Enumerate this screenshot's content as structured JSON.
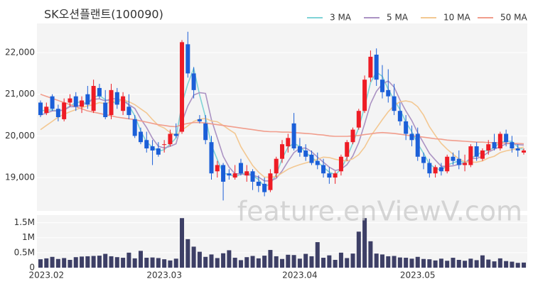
{
  "watermark": "feature.enViewV.com",
  "chart_data": [
    {
      "type": "candlestick",
      "title": "SK오션플랜트(100090)",
      "legend": "top-right",
      "grid": true,
      "up_color": "#ee1c25",
      "down_color": "#1b5fd8",
      "ylim": [
        18200,
        22700
      ],
      "yticks": [
        {
          "value": 19000,
          "label": "19,000"
        },
        {
          "value": 20000,
          "label": "20,000"
        },
        {
          "value": 21000,
          "label": "21,000"
        },
        {
          "value": 22000,
          "label": "22,000"
        }
      ],
      "open": [
        20800,
        20550,
        20950,
        20650,
        20400,
        20800,
        20950,
        20700,
        21000,
        20600,
        21150,
        20800,
        20500,
        21050,
        20600,
        20700,
        20400,
        20100,
        19900,
        19750,
        19700,
        19800,
        19800,
        20050,
        20100,
        22200,
        21500,
        20400,
        20300,
        19850,
        19150,
        19300,
        19100,
        19000,
        19350,
        19050,
        19150,
        18900,
        18850,
        18700,
        19100,
        19450,
        19750,
        20300,
        19750,
        19650,
        19550,
        19400,
        19300,
        19100,
        19000,
        19150,
        19500,
        19850,
        20200,
        20600,
        21400,
        21950,
        21350,
        21100,
        20950,
        20600,
        20350,
        20050,
        20050,
        19500,
        19350,
        19100,
        19250,
        19150,
        19500,
        19450,
        19300,
        19300,
        19750,
        19450,
        19650,
        19850,
        19700,
        20050,
        19850,
        19700,
        19600
      ],
      "high": [
        20850,
        20800,
        21000,
        20750,
        20900,
        21000,
        21050,
        20950,
        21200,
        21350,
        21250,
        21100,
        21250,
        21150,
        21050,
        21000,
        20500,
        20200,
        20100,
        19900,
        19850,
        19900,
        20150,
        20300,
        22300,
        22500,
        21650,
        20500,
        20500,
        20000,
        19400,
        19350,
        19200,
        19300,
        19450,
        19300,
        19200,
        19050,
        19000,
        19200,
        19500,
        19900,
        20050,
        20550,
        19950,
        19800,
        19650,
        19600,
        19450,
        19250,
        19150,
        19550,
        19900,
        20200,
        20650,
        21450,
        22050,
        22100,
        21700,
        21600,
        21250,
        20800,
        20500,
        20250,
        20200,
        19600,
        19450,
        19300,
        19350,
        19550,
        19600,
        19650,
        19550,
        19800,
        19850,
        19700,
        19900,
        20050,
        20100,
        20150,
        20000,
        19800,
        19700
      ],
      "low": [
        20450,
        20500,
        20600,
        20350,
        20350,
        20700,
        20600,
        20550,
        20650,
        20550,
        20900,
        20400,
        20400,
        20650,
        20500,
        20400,
        19950,
        19800,
        19600,
        19300,
        19500,
        19600,
        19750,
        19950,
        20050,
        21400,
        20900,
        20300,
        19800,
        18950,
        19000,
        18450,
        18950,
        18950,
        19050,
        18900,
        18700,
        18650,
        18550,
        18650,
        19000,
        19350,
        19600,
        19650,
        19500,
        19400,
        19300,
        19200,
        19000,
        18850,
        18850,
        19050,
        19400,
        19800,
        20150,
        20550,
        21300,
        21200,
        20900,
        20800,
        20500,
        20250,
        19900,
        19750,
        19400,
        19200,
        19000,
        19000,
        19050,
        19100,
        19300,
        19200,
        19150,
        19250,
        19400,
        19400,
        19550,
        19650,
        19650,
        19750,
        19600,
        19500,
        19550
      ],
      "close": [
        20500,
        20700,
        20650,
        20450,
        20800,
        20900,
        20700,
        20850,
        20750,
        21200,
        20950,
        20450,
        21100,
        20750,
        20950,
        20500,
        20000,
        19850,
        19700,
        19650,
        19550,
        19800,
        20050,
        20000,
        22250,
        21500,
        21100,
        20350,
        19900,
        19100,
        19300,
        18900,
        19050,
        19100,
        19100,
        19150,
        18900,
        18800,
        18650,
        19100,
        19450,
        19800,
        19950,
        19700,
        19600,
        19500,
        19350,
        19300,
        19100,
        19000,
        19100,
        19500,
        19850,
        20150,
        20600,
        21350,
        21900,
        21350,
        21050,
        20950,
        20600,
        20350,
        20050,
        19900,
        19500,
        19350,
        19100,
        19250,
        19150,
        19500,
        19400,
        19300,
        19350,
        19750,
        19500,
        19650,
        19800,
        19700,
        20050,
        19850,
        19700,
        19650,
        19650
      ],
      "series": [
        {
          "name": "3 MA",
          "color": "#7fd3d6",
          "values": [
            20600,
            20620,
            20620,
            20600,
            20630,
            20720,
            20800,
            20820,
            20770,
            20930,
            20970,
            20870,
            20830,
            20770,
            20930,
            20730,
            20480,
            20120,
            19850,
            19730,
            19630,
            19670,
            19800,
            19950,
            20770,
            21250,
            21620,
            20980,
            20450,
            19780,
            19430,
            19100,
            19080,
            19020,
            19080,
            19120,
            19050,
            18950,
            18780,
            18850,
            19070,
            19450,
            19730,
            19820,
            19750,
            19600,
            19480,
            19380,
            19250,
            19130,
            19070,
            19200,
            19480,
            19830,
            20200,
            20700,
            21280,
            21530,
            21430,
            21120,
            20870,
            20630,
            20330,
            20100,
            19820,
            19580,
            19320,
            19230,
            19170,
            19300,
            19350,
            19400,
            19350,
            19470,
            19530,
            19630,
            19650,
            19720,
            19850,
            19870,
            19870,
            19730,
            19670
          ]
        },
        {
          "name": "5 MA",
          "color": "#ab93c3",
          "values": [
            20500,
            20550,
            20600,
            20600,
            20620,
            20700,
            20700,
            20740,
            20800,
            20880,
            20890,
            20840,
            20890,
            20890,
            20840,
            20750,
            20660,
            20410,
            20200,
            19940,
            19750,
            19710,
            19750,
            19810,
            20330,
            20720,
            20980,
            21040,
            21020,
            20390,
            19950,
            19510,
            19250,
            19090,
            19090,
            19060,
            19060,
            19010,
            18920,
            18920,
            18980,
            19160,
            19390,
            19600,
            19700,
            19710,
            19620,
            19490,
            19370,
            19250,
            19170,
            19200,
            19310,
            19520,
            19840,
            20290,
            20770,
            21070,
            21250,
            21320,
            21170,
            20860,
            20600,
            20370,
            20080,
            19830,
            19580,
            19420,
            19270,
            19270,
            19280,
            19320,
            19340,
            19460,
            19460,
            19510,
            19610,
            19680,
            19740,
            19810,
            19820,
            19790,
            19780
          ]
        },
        {
          "name": "10 MA",
          "color": "#f3c892",
          "values": [
            20150,
            20250,
            20350,
            20450,
            20520,
            20580,
            20630,
            20680,
            20720,
            20750,
            20800,
            20770,
            20820,
            20850,
            20860,
            20820,
            20750,
            20650,
            20550,
            20390,
            20250,
            20190,
            20080,
            20010,
            20140,
            20240,
            20350,
            20400,
            20420,
            20360,
            20340,
            20250,
            20150,
            20060,
            19740,
            19510,
            19290,
            19130,
            19010,
            19010,
            19020,
            19110,
            19200,
            19260,
            19310,
            19350,
            19390,
            19440,
            19490,
            19480,
            19440,
            19410,
            19400,
            19450,
            19550,
            19730,
            19990,
            20190,
            20390,
            20580,
            20730,
            20820,
            20840,
            20810,
            20700,
            20500,
            20220,
            20010,
            19820,
            19680,
            19560,
            19450,
            19380,
            19370,
            19370,
            19400,
            19470,
            19510,
            19600,
            19640,
            19670,
            19700,
            19730
          ]
        },
        {
          "name": "50 MA",
          "color": "#f19d8c",
          "values": [
            21000,
            20950,
            20900,
            20850,
            20800,
            20750,
            20700,
            20650,
            20600,
            20570,
            20540,
            20510,
            20480,
            20450,
            20430,
            20410,
            20390,
            20360,
            20330,
            20300,
            20270,
            20250,
            20230,
            20220,
            20270,
            20300,
            20320,
            20320,
            20310,
            20290,
            20270,
            20250,
            20230,
            20210,
            20190,
            20170,
            20150,
            20130,
            20110,
            20100,
            20100,
            20090,
            20090,
            20080,
            20070,
            20060,
            20050,
            20030,
            20020,
            20000,
            19990,
            19990,
            19990,
            20000,
            20010,
            20030,
            20050,
            20070,
            20080,
            20070,
            20060,
            20040,
            20020,
            20000,
            19990,
            19970,
            19950,
            19930,
            19920,
            19900,
            19890,
            19880,
            19870,
            19860,
            19850,
            19850,
            19840,
            19840,
            19830,
            19830,
            19820,
            19820,
            19810
          ]
        }
      ]
    },
    {
      "type": "bar",
      "color": "#3d3f66",
      "grid": true,
      "ylim": [
        0,
        1750000
      ],
      "yticks": [
        0,
        {
          "value": 500000,
          "label": "0.5M"
        },
        {
          "value": 1000000,
          "label": "1M"
        },
        {
          "value": 1500000,
          "label": "1.5M"
        }
      ],
      "categories": [
        null,
        "2023.02",
        null,
        null,
        null,
        null,
        null,
        null,
        null,
        null,
        null,
        null,
        null,
        null,
        null,
        null,
        null,
        null,
        null,
        null,
        null,
        "2023.03",
        null,
        null,
        null,
        null,
        null,
        null,
        null,
        null,
        null,
        null,
        null,
        null,
        null,
        null,
        null,
        null,
        null,
        null,
        null,
        null,
        null,
        null,
        "2023.04",
        null,
        null,
        null,
        null,
        null,
        null,
        null,
        null,
        null,
        null,
        null,
        null,
        null,
        null,
        null,
        null,
        null,
        null,
        null,
        "2023.05",
        null,
        null,
        null,
        null,
        null,
        null,
        null,
        null,
        null,
        null,
        null,
        null,
        null,
        null,
        null,
        null,
        null,
        null
      ],
      "values": [
        280000,
        310000,
        360000,
        290000,
        320000,
        260000,
        350000,
        370000,
        380000,
        390000,
        400000,
        460000,
        380000,
        350000,
        330000,
        500000,
        310000,
        560000,
        330000,
        340000,
        320000,
        280000,
        240000,
        300000,
        1650000,
        950000,
        700000,
        530000,
        360000,
        440000,
        320000,
        480000,
        580000,
        330000,
        250000,
        350000,
        390000,
        310000,
        400000,
        590000,
        380000,
        290000,
        430000,
        420000,
        300000,
        460000,
        380000,
        850000,
        330000,
        410000,
        260000,
        500000,
        320000,
        470000,
        1200000,
        1650000,
        880000,
        470000,
        440000,
        380000,
        390000,
        340000,
        330000,
        300000,
        360000,
        290000,
        280000,
        240000,
        300000,
        230000,
        330000,
        260000,
        230000,
        300000,
        250000,
        410000,
        270000,
        210000,
        310000,
        220000,
        200000,
        160000,
        170000
      ]
    }
  ]
}
